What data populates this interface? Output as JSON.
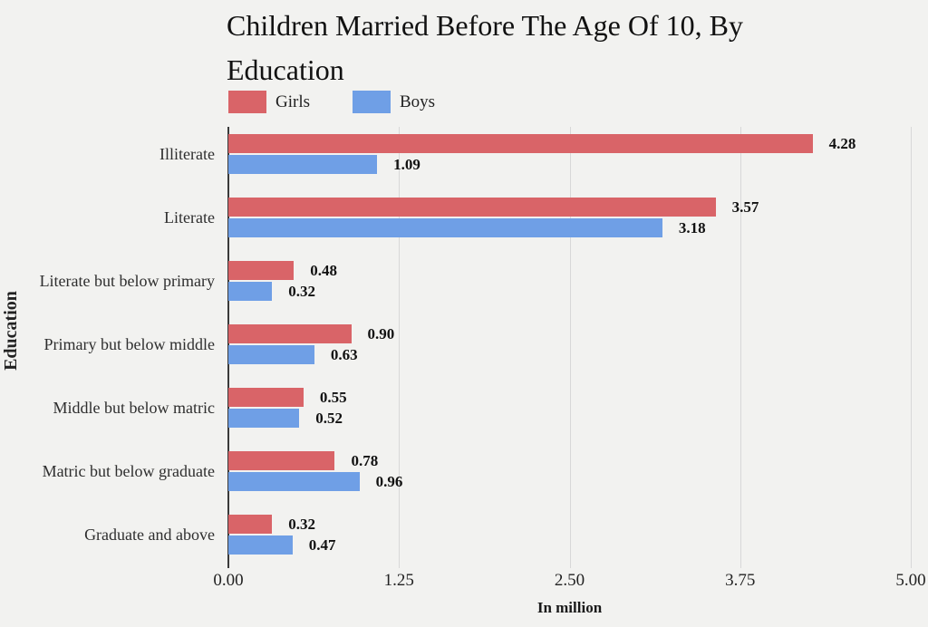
{
  "chart_data": {
    "type": "bar",
    "orientation": "horizontal",
    "title": "Children Married Before The Age Of 10, By Education",
    "xlabel": "In million",
    "ylabel": "Education",
    "xlim": [
      0,
      5
    ],
    "xticks": [
      "0.00",
      "1.25",
      "2.50",
      "3.75",
      "5.00"
    ],
    "grid": true,
    "legend_position": "top-left",
    "categories": [
      "Illiterate",
      "Literate",
      "Literate but below primary",
      "Primary but below middle",
      "Middle but below matric",
      "Matric but below graduate",
      "Graduate and above"
    ],
    "series": [
      {
        "name": "Girls",
        "color": "#d96468",
        "values": [
          4.28,
          3.57,
          0.48,
          0.9,
          0.55,
          0.78,
          0.32
        ]
      },
      {
        "name": "Boys",
        "color": "#6f9fe6",
        "values": [
          1.09,
          3.18,
          0.32,
          0.63,
          0.52,
          0.96,
          0.47
        ]
      }
    ],
    "value_labels_shown": true
  },
  "colors": {
    "background": "#f2f2f0",
    "gridline": "#d8d8d8",
    "axis_line": "#3a3a3a",
    "text": "#1c1c1c"
  }
}
